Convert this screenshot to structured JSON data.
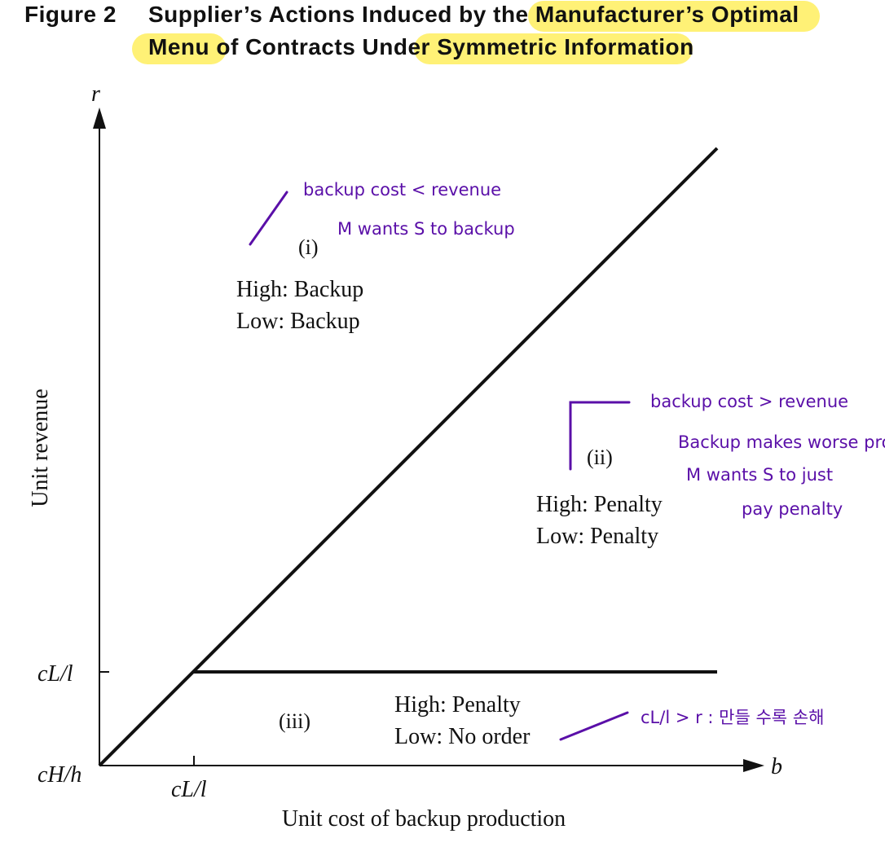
{
  "figure": {
    "number": "Figure 2",
    "title_line1": "Supplier’s Actions Induced by the Manufacturer’s Optimal",
    "title_line2": "Menu of Contracts Under Symmetric Information"
  },
  "axes": {
    "y_var": "r",
    "x_var": "b",
    "y_label": "Unit revenue",
    "x_label": "Unit cost of backup production",
    "y_tick": "cL/l",
    "origin": "cH/h",
    "x_tick": "cL/l"
  },
  "regions": {
    "i": {
      "tag": "(i)",
      "high": "High: Backup",
      "low": "Low: Backup"
    },
    "ii": {
      "tag": "(ii)",
      "high": "High: Penalty",
      "low": "Low: Penalty"
    },
    "iii": {
      "tag": "(iii)",
      "high": "High: Penalty",
      "low": "Low: No order"
    }
  },
  "notes": {
    "n1_line1": "backup cost < revenue",
    "n1_line2": "M wants S to backup",
    "n2_line1": "backup cost > revenue",
    "n2_line2": "Backup makes worse profit",
    "n2_line3": "M wants S to just",
    "n2_line4": "pay penalty",
    "n3": "cL/l > r : 만들 수록 손해"
  },
  "colors": {
    "highlight": "#fff176",
    "ink": "#5a0fa8",
    "line": "#111111"
  }
}
